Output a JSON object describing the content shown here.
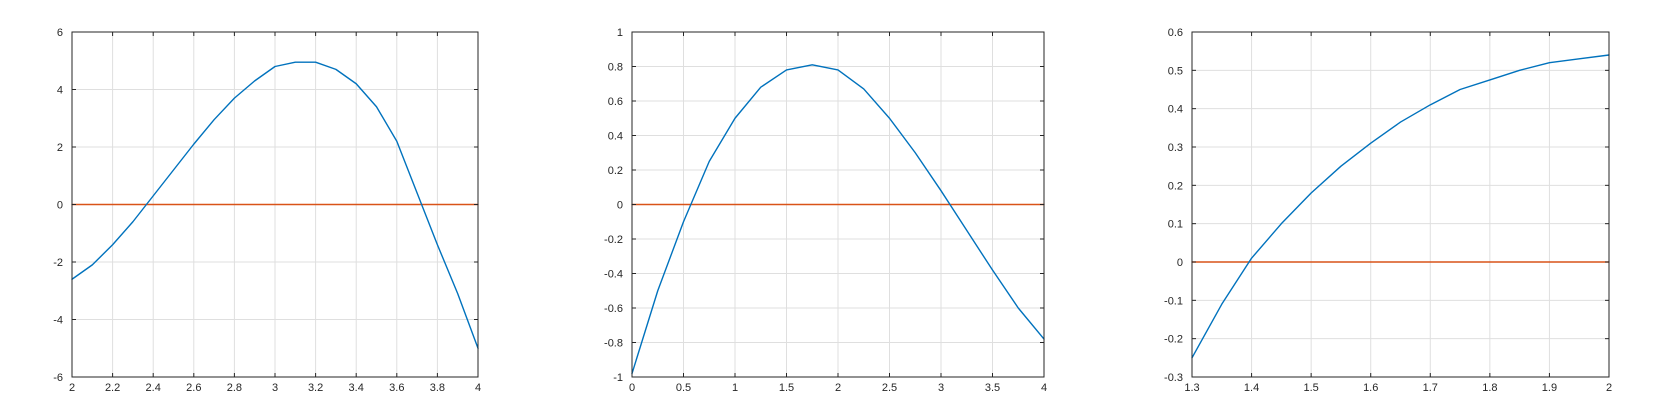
{
  "chart_data": [
    {
      "type": "line",
      "title": "",
      "xlabel": "",
      "ylabel": "",
      "grid": true,
      "xlim": [
        2,
        4
      ],
      "ylim": [
        -6,
        6
      ],
      "xticks": [
        "2",
        "2.2",
        "2.4",
        "2.6",
        "2.8",
        "3",
        "3.2",
        "3.4",
        "3.6",
        "3.8",
        "4"
      ],
      "yticks": [
        "-6",
        "-4",
        "-2",
        "0",
        "2",
        "4",
        "6"
      ],
      "series": [
        {
          "color": "#0072BD",
          "x": [
            2.0,
            2.1,
            2.2,
            2.3,
            2.4,
            2.5,
            2.6,
            2.7,
            2.8,
            2.9,
            3.0,
            3.1,
            3.2,
            3.3,
            3.4,
            3.5,
            3.6,
            3.7,
            3.8,
            3.9,
            4.0
          ],
          "y": [
            -2.6,
            -2.1,
            -1.4,
            -0.6,
            0.3,
            1.2,
            2.1,
            2.95,
            3.7,
            4.3,
            4.8,
            4.95,
            4.95,
            4.7,
            4.2,
            3.4,
            2.2,
            0.4,
            -1.4,
            -3.1,
            -5.0
          ]
        },
        {
          "color": "#D95319",
          "x": [
            2,
            4
          ],
          "y": [
            0,
            0
          ]
        }
      ]
    },
    {
      "type": "line",
      "title": "",
      "xlabel": "",
      "ylabel": "",
      "grid": true,
      "xlim": [
        0,
        4
      ],
      "ylim": [
        -1,
        1
      ],
      "xticks": [
        "0",
        "0.5",
        "1",
        "1.5",
        "2",
        "2.5",
        "3",
        "3.5",
        "4"
      ],
      "yticks": [
        "-1",
        "-0.8",
        "-0.6",
        "-0.4",
        "-0.2",
        "0",
        "0.2",
        "0.4",
        "0.6",
        "0.8",
        "1"
      ],
      "series": [
        {
          "color": "#0072BD",
          "x": [
            0.0,
            0.25,
            0.5,
            0.75,
            1.0,
            1.25,
            1.5,
            1.75,
            2.0,
            2.25,
            2.5,
            2.75,
            3.0,
            3.25,
            3.5,
            3.75,
            4.0
          ],
          "y": [
            -0.98,
            -0.5,
            -0.1,
            0.25,
            0.5,
            0.68,
            0.78,
            0.81,
            0.78,
            0.67,
            0.5,
            0.3,
            0.08,
            -0.15,
            -0.38,
            -0.6,
            -0.78
          ]
        },
        {
          "color": "#D95319",
          "x": [
            0,
            4
          ],
          "y": [
            0,
            0
          ]
        }
      ]
    },
    {
      "type": "line",
      "title": "",
      "xlabel": "",
      "ylabel": "",
      "grid": true,
      "xlim": [
        1.3,
        2
      ],
      "ylim": [
        -0.3,
        0.6
      ],
      "xticks": [
        "1.3",
        "1.4",
        "1.5",
        "1.6",
        "1.7",
        "1.8",
        "1.9",
        "2"
      ],
      "yticks": [
        "-0.3",
        "-0.2",
        "-0.1",
        "0",
        "0.1",
        "0.2",
        "0.3",
        "0.4",
        "0.5",
        "0.6"
      ],
      "series": [
        {
          "color": "#0072BD",
          "x": [
            1.3,
            1.35,
            1.4,
            1.45,
            1.5,
            1.55,
            1.6,
            1.65,
            1.7,
            1.75,
            1.8,
            1.85,
            1.9,
            1.95,
            2.0
          ],
          "y": [
            -0.25,
            -0.11,
            0.01,
            0.1,
            0.18,
            0.25,
            0.31,
            0.365,
            0.41,
            0.45,
            0.475,
            0.5,
            0.52,
            0.53,
            0.54
          ]
        },
        {
          "color": "#D95319",
          "x": [
            1.3,
            2
          ],
          "y": [
            0,
            0
          ]
        }
      ]
    }
  ]
}
